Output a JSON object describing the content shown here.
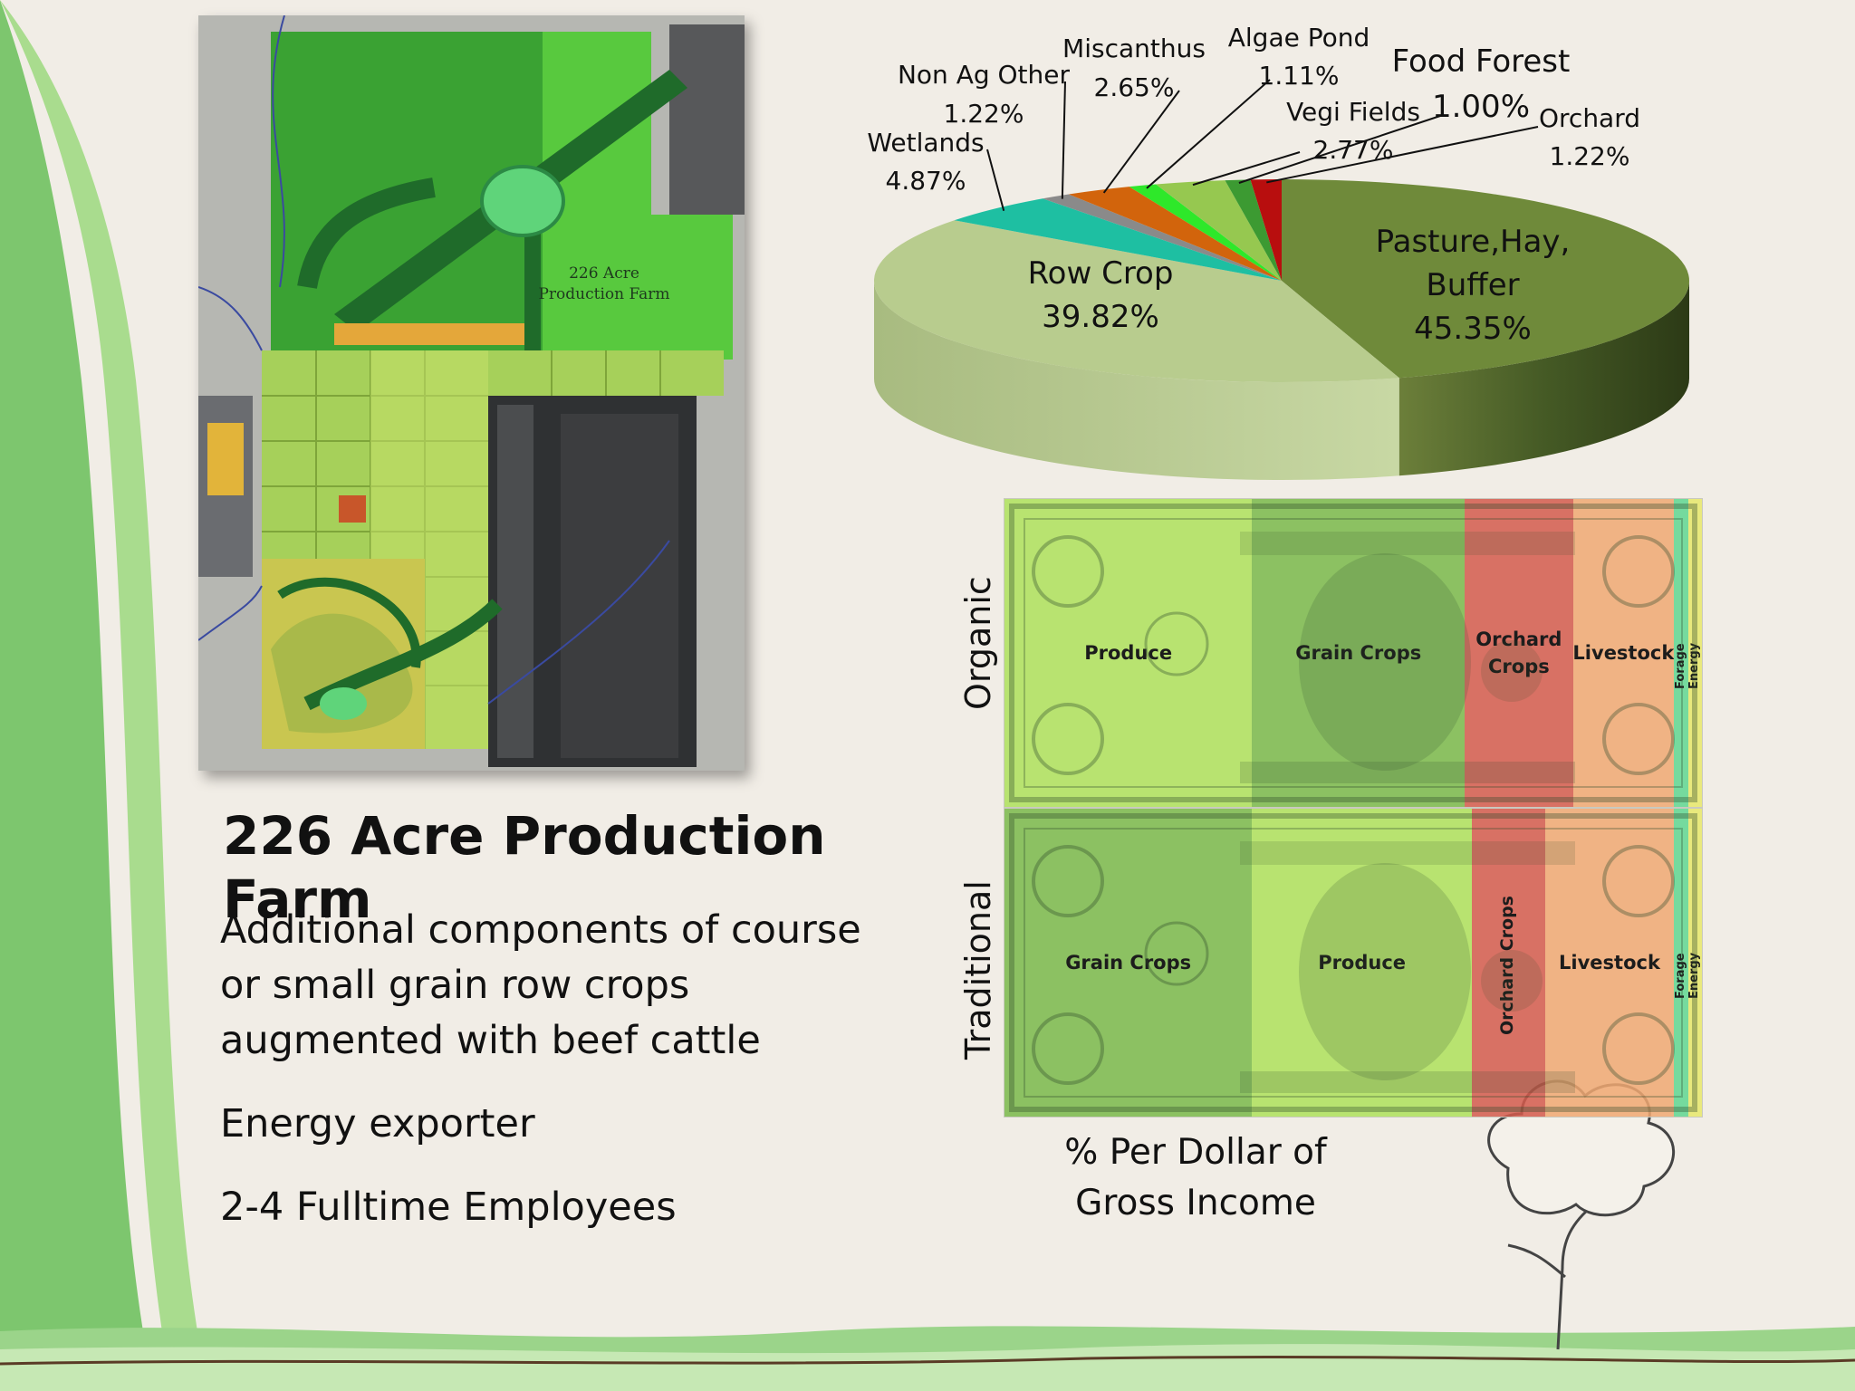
{
  "left_panel": {
    "map_label_line1": "226 Acre",
    "map_label_line2": "Production Farm",
    "title": "226 Acre Production Farm",
    "bullets": [
      "Additional components of course or small grain row crops augmented with beef cattle",
      "Energy exporter",
      "2-4 Fulltime Employees"
    ]
  },
  "chart_data": [
    {
      "type": "pie",
      "title": "",
      "slices": [
        {
          "label": "Pasture,Hay, Buffer",
          "value": 45.35,
          "value_label": "45.35%",
          "color": "#6f8a3a"
        },
        {
          "label": "Row Crop",
          "value": 39.82,
          "value_label": "39.82%",
          "color": "#b8cc8e"
        },
        {
          "label": "Wetlands",
          "value": 4.87,
          "value_label": "4.87%",
          "color": "#1ebfa2"
        },
        {
          "label": "Non Ag Other",
          "value": 1.22,
          "value_label": "1.22%",
          "color": "#8a8a8a"
        },
        {
          "label": "Miscanthus",
          "value": 2.65,
          "value_label": "2.65%",
          "color": "#d2640c"
        },
        {
          "label": "Algae Pond",
          "value": 1.11,
          "value_label": "1.11%",
          "color": "#2ee82a"
        },
        {
          "label": "Vegi Fields",
          "value": 2.77,
          "value_label": "2.77%",
          "color": "#96c850"
        },
        {
          "label": "Food Forest",
          "value": 1.0,
          "value_label": "1.00%",
          "color": "#3c9a32"
        },
        {
          "label": "Orchard",
          "value": 1.22,
          "value_label": "1.22%",
          "color": "#b80e0e"
        }
      ]
    },
    {
      "type": "bar",
      "orientation": "horizontal-stacked",
      "xlabel": "% Per Dollar of Gross Income",
      "series": [
        {
          "name": "Organic",
          "segments": [
            {
              "label": "Produce",
              "value": 35.5,
              "color": "#aee05a"
            },
            {
              "label": "Grain Crops",
              "value": 30.5,
              "color": "#7ab84a"
            },
            {
              "label": "Orchard Crops",
              "value": 15.5,
              "color": "#d45a4c"
            },
            {
              "label": "Livestock",
              "value": 14.5,
              "color": "#f0a872"
            },
            {
              "label": "Forage",
              "value": 2.0,
              "color": "#5fd690"
            },
            {
              "label": "Energy",
              "value": 2.0,
              "color": "#e8e86a"
            }
          ]
        },
        {
          "name": "Traditional",
          "segments": [
            {
              "label": "Grain Crops",
              "value": 35.5,
              "color": "#7ab84a"
            },
            {
              "label": "Produce",
              "value": 31.5,
              "color": "#aee05a"
            },
            {
              "label": "Orchard Crops",
              "value": 10.5,
              "color": "#d45a4c"
            },
            {
              "label": "Livestock",
              "value": 18.5,
              "color": "#f0a872"
            },
            {
              "label": "Forage",
              "value": 2.0,
              "color": "#5fd690"
            },
            {
              "label": "Energy",
              "value": 2.0,
              "color": "#e8e86a"
            }
          ]
        }
      ]
    }
  ]
}
